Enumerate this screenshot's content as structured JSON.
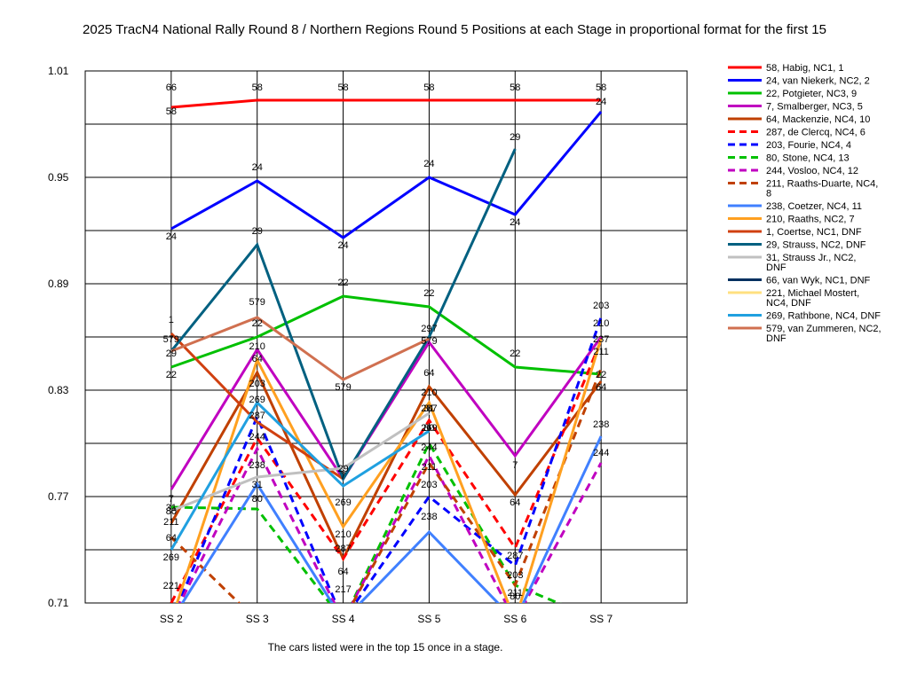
{
  "chart_data": {
    "type": "line",
    "title": "2025 TracN4 National Rally Round 8 / Northern Regions Round 5  Positions at each Stage in proportional format for the first 15",
    "footnote": "The cars listed were in the top 15 once in a stage.",
    "categories": [
      "SS 2",
      "SS 3",
      "SS 4",
      "SS 5",
      "SS 6",
      "SS 7"
    ],
    "y_ticks": [
      "1.01",
      "0.95",
      "0.89",
      "0.83",
      "0.77",
      "0.71"
    ],
    "ylim": [
      0.71,
      1.01
    ],
    "grid": true,
    "legend_position": "right",
    "series": [
      {
        "name": "58, Habig, NC1, 1",
        "label": "58",
        "color": "#ff0000",
        "dash": false,
        "values": [
          0.9895,
          0.9935,
          0.9935,
          0.9935,
          0.9935,
          0.9935
        ]
      },
      {
        "name": "24, van Niekerk, NC2, 2",
        "label": "24",
        "color": "#0000ff",
        "dash": false,
        "values": [
          0.921,
          0.948,
          0.916,
          0.95,
          0.929,
          0.987
        ]
      },
      {
        "name": "22, Potgieter, NC3, 9",
        "label": "22",
        "color": "#00c000",
        "dash": false,
        "values": [
          0.843,
          0.86,
          0.883,
          0.877,
          0.843,
          0.839
        ]
      },
      {
        "name": "7, Smalberger, NC3, 5",
        "label": "7",
        "color": "#c000c0",
        "dash": false,
        "values": [
          0.774,
          0.853,
          0.78,
          0.857,
          0.793,
          0.86
        ]
      },
      {
        "name": "64, Mackenzie, NC4, 10",
        "label": "64",
        "color": "#c04000",
        "dash": false,
        "values": [
          0.755,
          0.84,
          0.735,
          0.832,
          0.771,
          0.835
        ]
      },
      {
        "name": "287, de Clercq, NC4, 6",
        "label": "287",
        "color": "#ff0000",
        "dash": true,
        "values": [
          0.71,
          0.803,
          0.735,
          0.813,
          0.741,
          0.858
        ]
      },
      {
        "name": "203, Fourie, NC4, 4",
        "label": "203",
        "color": "#0000ff",
        "dash": true,
        "values": [
          0.7,
          0.815,
          0.7,
          0.77,
          0.731,
          0.871
        ]
      },
      {
        "name": "80, Stone, NC4, 13",
        "label": "80",
        "color": "#00c000",
        "dash": true,
        "values": [
          0.764,
          0.763,
          0.7,
          0.8,
          0.72,
          0.7
        ]
      },
      {
        "name": "244, Vosloo, NC4, 12",
        "label": "244",
        "color": "#c000c0",
        "dash": true,
        "values": [
          0.7,
          0.797,
          0.7,
          0.793,
          0.7,
          0.789
        ]
      },
      {
        "name": "211, Raaths-Duarte, NC4, 8",
        "label": "211",
        "color": "#c04000",
        "dash": true,
        "values": [
          0.747,
          0.7,
          0.7,
          0.789,
          0.72,
          0.842
        ]
      },
      {
        "name": "238, Coetzer, NC4, 11",
        "label": "238",
        "color": "#4080ff",
        "dash": false,
        "values": [
          0.7,
          0.777,
          0.7,
          0.75,
          0.7,
          0.804
        ]
      },
      {
        "name": "210, Raaths, NC2, 7",
        "label": "210",
        "color": "#ffa020",
        "dash": false,
        "values": [
          0.7,
          0.847,
          0.753,
          0.823,
          0.7,
          0.859
        ]
      },
      {
        "name": "1, Coertse, NC1,  DNF",
        "label": "1",
        "color": "#d04010",
        "dash": false,
        "values": [
          0.862,
          0.812,
          0.78,
          null,
          null,
          null
        ]
      },
      {
        "name": "29, Strauss, NC2,  DNF",
        "label": "29",
        "color": "#006080",
        "dash": false,
        "values": [
          0.852,
          0.912,
          0.78,
          0.86,
          0.966,
          null
        ]
      },
      {
        "name": "31, Strauss Jr., NC2,  DNF",
        "label": "31",
        "color": "#c0c0c0",
        "dash": false,
        "values": [
          0.762,
          0.781,
          0.786,
          0.817,
          null,
          null
        ]
      },
      {
        "name": "66, van Wyk, NC1,  DNF",
        "label": "66",
        "color": "#003060",
        "dash": false,
        "values": [
          null,
          null,
          null,
          null,
          null,
          null
        ]
      },
      {
        "name": "221, Michael Mostert, NC4, DNF",
        "label": "221",
        "color": "#ffe080",
        "dash": false,
        "values": [
          null,
          null,
          null,
          null,
          null,
          null
        ]
      },
      {
        "name": "269, Rathbone, NC4,  DNF",
        "label": "269",
        "color": "#20a0e0",
        "dash": false,
        "values": [
          0.74,
          0.823,
          0.776,
          0.807,
          null,
          null
        ]
      },
      {
        "name": "579, van Zummeren, NC2, DNF",
        "label": "579",
        "color": "#d07050",
        "dash": false,
        "values": [
          0.852,
          0.871,
          0.836,
          0.859,
          null,
          null
        ]
      }
    ],
    "point_labels": [
      {
        "text": "66",
        "cat": 0,
        "y": 0.999
      },
      {
        "text": "58",
        "cat": 0,
        "y": 0.9855
      },
      {
        "text": "58",
        "cat": 1,
        "y": 0.999
      },
      {
        "text": "58",
        "cat": 2,
        "y": 0.999
      },
      {
        "text": "58",
        "cat": 3,
        "y": 0.999
      },
      {
        "text": "58",
        "cat": 4,
        "y": 0.999
      },
      {
        "text": "58",
        "cat": 5,
        "y": 0.999
      },
      {
        "text": "24",
        "cat": 5,
        "y": 0.991
      },
      {
        "text": "24",
        "cat": 0,
        "y": 0.915
      },
      {
        "text": "24",
        "cat": 1,
        "y": 0.954
      },
      {
        "text": "24",
        "cat": 2,
        "y": 0.91
      },
      {
        "text": "24",
        "cat": 3,
        "y": 0.956
      },
      {
        "text": "24",
        "cat": 4,
        "y": 0.923
      },
      {
        "text": "29",
        "cat": 1,
        "y": 0.918
      },
      {
        "text": "29",
        "cat": 4,
        "y": 0.971
      },
      {
        "text": "579",
        "cat": 1,
        "y": 0.878
      },
      {
        "text": "22",
        "cat": 1,
        "y": 0.866
      },
      {
        "text": "22",
        "cat": 2,
        "y": 0.889
      },
      {
        "text": "22",
        "cat": 3,
        "y": 0.883
      },
      {
        "text": "22",
        "cat": 4,
        "y": 0.849
      },
      {
        "text": "203",
        "cat": 5,
        "y": 0.876
      },
      {
        "text": "210",
        "cat": 5,
        "y": 0.866
      },
      {
        "text": "237",
        "cat": 5,
        "y": 0.857
      },
      {
        "text": "211",
        "cat": 5,
        "y": 0.85
      },
      {
        "text": "22",
        "cat": 5,
        "y": 0.837
      },
      {
        "text": "64",
        "cat": 5,
        "y": 0.83
      },
      {
        "text": "238",
        "cat": 5,
        "y": 0.809
      },
      {
        "text": "244",
        "cat": 5,
        "y": 0.793
      },
      {
        "text": "1",
        "cat": 0,
        "y": 0.868
      },
      {
        "text": "579",
        "cat": 0,
        "y": 0.857
      },
      {
        "text": "29",
        "cat": 0,
        "y": 0.849
      },
      {
        "text": "22",
        "cat": 0,
        "y": 0.837
      },
      {
        "text": "7",
        "cat": 0,
        "y": 0.767
      },
      {
        "text": "31",
        "cat": 0,
        "y": 0.762
      },
      {
        "text": "80",
        "cat": 0,
        "y": 0.76
      },
      {
        "text": "211",
        "cat": 0,
        "y": 0.754
      },
      {
        "text": "64",
        "cat": 0,
        "y": 0.745
      },
      {
        "text": "269",
        "cat": 0,
        "y": 0.734
      },
      {
        "text": "221",
        "cat": 0,
        "y": 0.718
      },
      {
        "text": "210",
        "cat": 1,
        "y": 0.853
      },
      {
        "text": "64",
        "cat": 1,
        "y": 0.846
      },
      {
        "text": "203",
        "cat": 1,
        "y": 0.832
      },
      {
        "text": "269",
        "cat": 1,
        "y": 0.823
      },
      {
        "text": "287",
        "cat": 1,
        "y": 0.814
      },
      {
        "text": "244",
        "cat": 1,
        "y": 0.802
      },
      {
        "text": "238",
        "cat": 1,
        "y": 0.786
      },
      {
        "text": "31",
        "cat": 1,
        "y": 0.775
      },
      {
        "text": "80",
        "cat": 1,
        "y": 0.767
      },
      {
        "text": "579",
        "cat": 2,
        "y": 0.83
      },
      {
        "text": "29",
        "cat": 2,
        "y": 0.784
      },
      {
        "text": "7",
        "cat": 2,
        "y": 0.78
      },
      {
        "text": "269",
        "cat": 2,
        "y": 0.765
      },
      {
        "text": "210",
        "cat": 2,
        "y": 0.747
      },
      {
        "text": "287",
        "cat": 2,
        "y": 0.739
      },
      {
        "text": "64",
        "cat": 2,
        "y": 0.726
      },
      {
        "text": "217",
        "cat": 2,
        "y": 0.716
      },
      {
        "text": "297",
        "cat": 3,
        "y": 0.863
      },
      {
        "text": "579",
        "cat": 3,
        "y": 0.856
      },
      {
        "text": "64",
        "cat": 3,
        "y": 0.838
      },
      {
        "text": "210",
        "cat": 3,
        "y": 0.827
      },
      {
        "text": "31",
        "cat": 3,
        "y": 0.818
      },
      {
        "text": "287",
        "cat": 3,
        "y": 0.818
      },
      {
        "text": "269",
        "cat": 3,
        "y": 0.807
      },
      {
        "text": "80",
        "cat": 3,
        "y": 0.807
      },
      {
        "text": "244",
        "cat": 3,
        "y": 0.796
      },
      {
        "text": "211",
        "cat": 3,
        "y": 0.785
      },
      {
        "text": "203",
        "cat": 3,
        "y": 0.775
      },
      {
        "text": "238",
        "cat": 3,
        "y": 0.757
      },
      {
        "text": "7",
        "cat": 4,
        "y": 0.786
      },
      {
        "text": "64",
        "cat": 4,
        "y": 0.765
      },
      {
        "text": "287",
        "cat": 4,
        "y": 0.735
      },
      {
        "text": "203",
        "cat": 4,
        "y": 0.724
      },
      {
        "text": "211",
        "cat": 4,
        "y": 0.714
      },
      {
        "text": "80",
        "cat": 4,
        "y": 0.712
      }
    ]
  }
}
